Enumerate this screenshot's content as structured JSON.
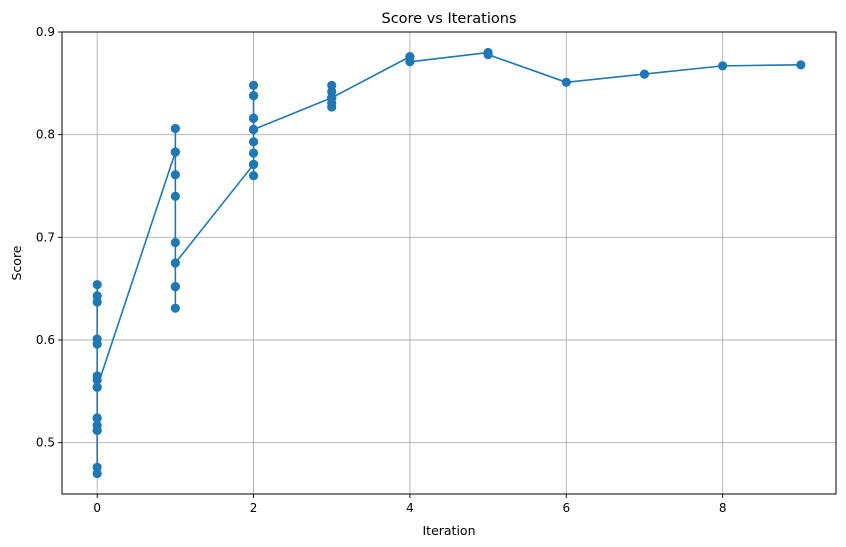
{
  "chart_data": {
    "type": "line",
    "title": "Score vs Iterations",
    "xlabel": "Iteration",
    "ylabel": "Score",
    "xlim": [
      -0.45,
      9.45
    ],
    "ylim": [
      0.45,
      0.9
    ],
    "xticks": [
      0,
      2,
      4,
      6,
      8
    ],
    "yticks": [
      0.5,
      0.6,
      0.7,
      0.8,
      0.9
    ],
    "xtick_labels": [
      "0",
      "2",
      "4",
      "6",
      "8"
    ],
    "ytick_labels": [
      "0.5",
      "0.6",
      "0.7",
      "0.8",
      "0.9"
    ],
    "grid": true,
    "colors": {
      "series": "#1f77b4",
      "grid": "#b0b0b0"
    },
    "series": [
      {
        "marker": "circle",
        "points": [
          [
            0,
            0.654
          ],
          [
            0,
            0.643
          ],
          [
            0,
            0.637
          ],
          [
            0,
            0.601
          ],
          [
            0,
            0.596
          ],
          [
            0,
            0.565
          ],
          [
            0,
            0.561
          ],
          [
            0,
            0.554
          ],
          [
            0,
            0.524
          ],
          [
            0,
            0.517
          ],
          [
            0,
            0.512
          ],
          [
            0,
            0.476
          ],
          [
            0,
            0.47
          ],
          [
            0,
            0.512
          ],
          [
            0,
            0.524
          ],
          [
            0,
            0.554
          ],
          [
            1,
            0.783
          ],
          [
            1,
            0.806
          ],
          [
            1,
            0.783
          ],
          [
            1,
            0.761
          ],
          [
            1,
            0.74
          ],
          [
            1,
            0.695
          ],
          [
            1,
            0.652
          ],
          [
            1,
            0.631
          ],
          [
            1,
            0.652
          ],
          [
            1,
            0.675
          ],
          [
            2,
            0.771
          ],
          [
            2,
            0.76
          ],
          [
            2,
            0.771
          ],
          [
            2,
            0.782
          ],
          [
            2,
            0.793
          ],
          [
            2,
            0.805
          ],
          [
            2,
            0.816
          ],
          [
            2,
            0.838
          ],
          [
            2,
            0.848
          ],
          [
            2,
            0.838
          ],
          [
            2,
            0.816
          ],
          [
            2,
            0.805
          ],
          [
            3,
            0.836
          ],
          [
            3,
            0.827
          ],
          [
            3,
            0.831
          ],
          [
            3,
            0.836
          ],
          [
            3,
            0.842
          ],
          [
            3,
            0.848
          ],
          [
            3,
            0.836
          ],
          [
            4,
            0.876
          ],
          [
            4,
            0.871
          ],
          [
            5,
            0.88
          ],
          [
            5,
            0.878
          ],
          [
            6,
            0.851
          ],
          [
            7,
            0.859
          ],
          [
            8,
            0.867
          ],
          [
            9,
            0.868
          ]
        ]
      }
    ]
  }
}
